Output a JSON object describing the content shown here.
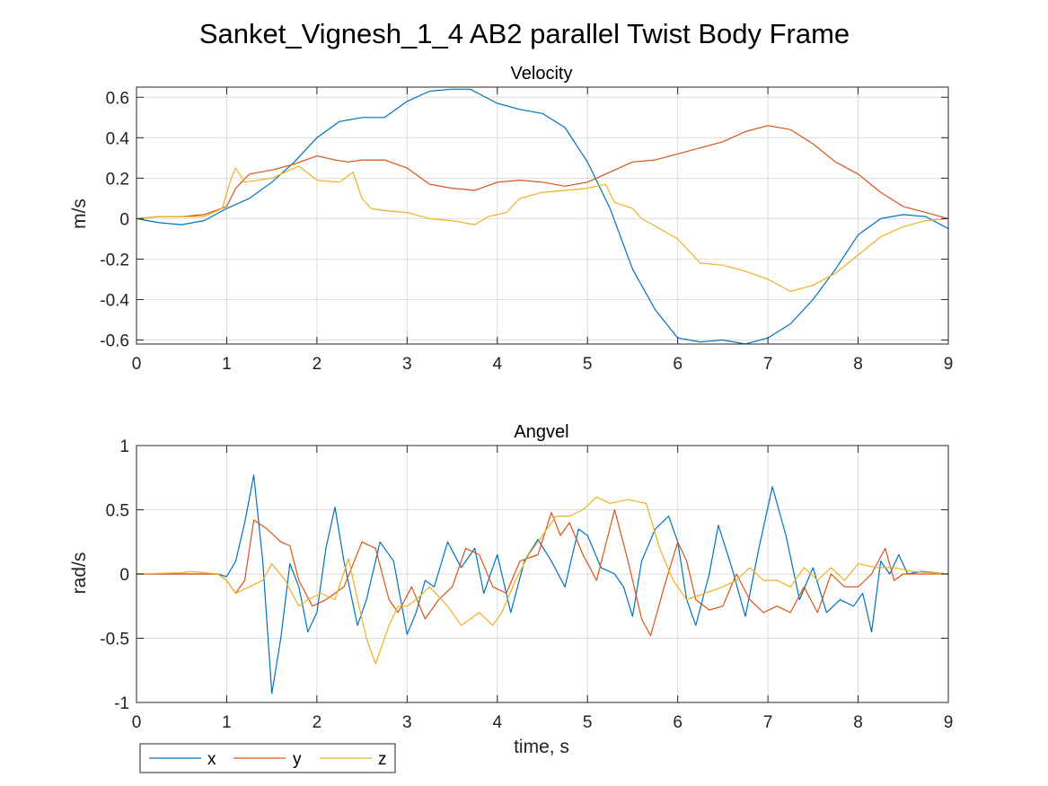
{
  "title": "Sanket_Vignesh_1_4 AB2 parallel Twist Body Frame",
  "colors": {
    "x": "#0072BD",
    "y": "#D95319",
    "z": "#EDB120"
  },
  "legend": {
    "placement": "bottom-left",
    "entries": [
      "x",
      "y",
      "z"
    ]
  },
  "chart_data": [
    {
      "type": "line",
      "title": "Velocity",
      "xlabel": "",
      "ylabel": "m/s",
      "xlim": [
        0,
        9
      ],
      "ylim": [
        -0.62,
        0.65
      ],
      "xticks": [
        0,
        1,
        2,
        3,
        4,
        5,
        6,
        7,
        8,
        9
      ],
      "yticks": [
        -0.6,
        -0.4,
        -0.2,
        0,
        0.2,
        0.4,
        0.6
      ],
      "ytick_labels": [
        "-0.6",
        "-0.4",
        "-0.2",
        "0",
        "0.2",
        "0.4",
        "0.6"
      ],
      "grid": true,
      "series": [
        {
          "name": "x",
          "x": [
            0,
            0.25,
            0.5,
            0.75,
            1.0,
            1.25,
            1.5,
            1.75,
            2.0,
            2.25,
            2.5,
            2.75,
            3.0,
            3.25,
            3.5,
            3.7,
            4.0,
            4.25,
            4.5,
            4.75,
            5.0,
            5.25,
            5.5,
            5.75,
            6.0,
            6.25,
            6.5,
            6.75,
            7.0,
            7.25,
            7.5,
            7.75,
            8.0,
            8.25,
            8.5,
            8.75,
            9.0
          ],
          "y": [
            0,
            -0.02,
            -0.03,
            -0.01,
            0.05,
            0.1,
            0.18,
            0.28,
            0.4,
            0.48,
            0.5,
            0.5,
            0.58,
            0.63,
            0.64,
            0.64,
            0.57,
            0.54,
            0.52,
            0.45,
            0.28,
            0.05,
            -0.25,
            -0.45,
            -0.59,
            -0.61,
            -0.6,
            -0.62,
            -0.59,
            -0.52,
            -0.4,
            -0.25,
            -0.08,
            0.0,
            0.02,
            0.01,
            -0.05
          ]
        },
        {
          "name": "y",
          "x": [
            0,
            0.25,
            0.5,
            0.75,
            1.0,
            1.1,
            1.25,
            1.5,
            1.75,
            2.0,
            2.2,
            2.35,
            2.5,
            2.75,
            3.0,
            3.25,
            3.5,
            3.75,
            4.0,
            4.25,
            4.5,
            4.75,
            5.0,
            5.25,
            5.5,
            5.75,
            6.0,
            6.25,
            6.5,
            6.75,
            7.0,
            7.25,
            7.5,
            7.75,
            8.0,
            8.25,
            8.5,
            8.75,
            9.0
          ],
          "y": [
            0,
            0.01,
            0.01,
            0.02,
            0.06,
            0.15,
            0.22,
            0.24,
            0.27,
            0.31,
            0.29,
            0.28,
            0.29,
            0.29,
            0.25,
            0.17,
            0.15,
            0.14,
            0.18,
            0.19,
            0.18,
            0.16,
            0.18,
            0.23,
            0.28,
            0.29,
            0.32,
            0.35,
            0.38,
            0.43,
            0.46,
            0.44,
            0.37,
            0.28,
            0.22,
            0.13,
            0.06,
            0.03,
            0.0
          ]
        },
        {
          "name": "z",
          "x": [
            0,
            0.25,
            0.5,
            0.75,
            0.95,
            1.05,
            1.1,
            1.2,
            1.5,
            1.8,
            2.0,
            2.25,
            2.4,
            2.5,
            2.6,
            2.75,
            3.0,
            3.25,
            3.5,
            3.75,
            3.9,
            4.1,
            4.25,
            4.5,
            4.75,
            5.0,
            5.2,
            5.3,
            5.5,
            5.6,
            5.8,
            6.0,
            6.25,
            6.5,
            6.75,
            7.0,
            7.25,
            7.5,
            7.75,
            8.0,
            8.25,
            8.5,
            8.75,
            9.0
          ],
          "y": [
            0,
            0.01,
            0.01,
            0.01,
            0.05,
            0.2,
            0.25,
            0.18,
            0.2,
            0.26,
            0.19,
            0.18,
            0.23,
            0.1,
            0.05,
            0.04,
            0.03,
            0.0,
            -0.01,
            -0.03,
            0.01,
            0.03,
            0.1,
            0.13,
            0.14,
            0.15,
            0.17,
            0.08,
            0.05,
            0.0,
            -0.05,
            -0.1,
            -0.22,
            -0.23,
            -0.26,
            -0.3,
            -0.36,
            -0.33,
            -0.27,
            -0.18,
            -0.09,
            -0.04,
            -0.01,
            0.0
          ]
        }
      ]
    },
    {
      "type": "line",
      "title": "Angvel",
      "xlabel": "time, s",
      "ylabel": "rad/s",
      "xlim": [
        0,
        9
      ],
      "ylim": [
        -1,
        1
      ],
      "xticks": [
        0,
        1,
        2,
        3,
        4,
        5,
        6,
        7,
        8,
        9
      ],
      "yticks": [
        -1,
        -0.5,
        0,
        0.5,
        1
      ],
      "ytick_labels": [
        "-1",
        "-0.5",
        "0",
        "0.5",
        "1"
      ],
      "grid": true,
      "series": [
        {
          "name": "x",
          "x": [
            0,
            0.9,
            1.0,
            1.1,
            1.2,
            1.3,
            1.4,
            1.5,
            1.6,
            1.7,
            1.8,
            1.9,
            2.0,
            2.1,
            2.2,
            2.3,
            2.45,
            2.55,
            2.7,
            2.85,
            3.0,
            3.1,
            3.2,
            3.3,
            3.45,
            3.6,
            3.75,
            3.85,
            4.0,
            4.15,
            4.3,
            4.45,
            4.6,
            4.75,
            4.9,
            5.0,
            5.15,
            5.3,
            5.4,
            5.5,
            5.6,
            5.75,
            5.9,
            6.0,
            6.1,
            6.2,
            6.35,
            6.45,
            6.6,
            6.75,
            6.9,
            7.05,
            7.2,
            7.35,
            7.5,
            7.65,
            7.8,
            7.95,
            8.05,
            8.15,
            8.25,
            8.35,
            8.45,
            8.55,
            8.7,
            9.0
          ],
          "y": [
            0,
            0,
            -0.02,
            0.1,
            0.4,
            0.77,
            0.1,
            -0.93,
            -0.5,
            0.08,
            -0.1,
            -0.45,
            -0.3,
            0.2,
            0.52,
            0.1,
            -0.4,
            -0.2,
            0.25,
            0.1,
            -0.47,
            -0.3,
            -0.05,
            -0.1,
            0.25,
            0.05,
            0.2,
            -0.15,
            0.15,
            -0.3,
            0.1,
            0.27,
            0.1,
            -0.1,
            0.35,
            0.3,
            0.05,
            0.0,
            -0.1,
            -0.33,
            0.1,
            0.35,
            0.45,
            0.25,
            -0.2,
            -0.4,
            0.0,
            0.38,
            0.05,
            -0.33,
            0.2,
            0.68,
            0.3,
            -0.2,
            0.05,
            -0.3,
            -0.2,
            -0.25,
            -0.15,
            -0.45,
            0.1,
            0.0,
            0.15,
            0.0,
            0.02,
            0.0
          ]
        },
        {
          "name": "y",
          "x": [
            0,
            0.9,
            1.0,
            1.1,
            1.2,
            1.3,
            1.45,
            1.6,
            1.7,
            1.8,
            1.95,
            2.1,
            2.3,
            2.5,
            2.65,
            2.8,
            2.9,
            3.05,
            3.2,
            3.35,
            3.5,
            3.65,
            3.8,
            3.95,
            4.1,
            4.25,
            4.45,
            4.6,
            4.7,
            4.8,
            4.95,
            5.1,
            5.3,
            5.45,
            5.6,
            5.7,
            5.85,
            6.0,
            6.1,
            6.2,
            6.35,
            6.5,
            6.65,
            6.8,
            6.95,
            7.1,
            7.25,
            7.4,
            7.55,
            7.7,
            7.85,
            8.0,
            8.15,
            8.3,
            8.4,
            8.5,
            8.7,
            9.0
          ],
          "y": [
            0,
            0,
            -0.05,
            -0.15,
            -0.05,
            0.42,
            0.35,
            0.25,
            0.22,
            -0.05,
            -0.25,
            -0.2,
            -0.1,
            0.25,
            0.2,
            -0.2,
            -0.3,
            -0.1,
            -0.35,
            -0.2,
            -0.1,
            0.2,
            0.15,
            -0.1,
            -0.15,
            0.1,
            0.15,
            0.48,
            0.3,
            0.4,
            0.15,
            -0.05,
            0.5,
            0.1,
            -0.35,
            -0.48,
            -0.1,
            0.25,
            0.1,
            -0.2,
            -0.28,
            -0.25,
            0.0,
            -0.2,
            -0.3,
            -0.25,
            -0.3,
            -0.1,
            -0.3,
            0.0,
            -0.1,
            -0.1,
            0.0,
            0.2,
            -0.05,
            0.0,
            0.0,
            0.0
          ]
        },
        {
          "name": "z",
          "x": [
            0,
            0.5,
            0.6,
            0.9,
            1.0,
            1.1,
            1.25,
            1.4,
            1.5,
            1.65,
            1.8,
            1.9,
            2.05,
            2.2,
            2.35,
            2.45,
            2.55,
            2.65,
            2.7,
            2.8,
            2.9,
            3.0,
            3.1,
            3.25,
            3.45,
            3.6,
            3.8,
            3.95,
            4.05,
            4.2,
            4.35,
            4.5,
            4.65,
            4.8,
            4.95,
            5.1,
            5.25,
            5.45,
            5.65,
            5.8,
            5.95,
            6.1,
            6.3,
            6.5,
            6.65,
            6.8,
            6.95,
            7.1,
            7.25,
            7.4,
            7.55,
            7.7,
            7.85,
            8.0,
            8.2,
            8.4,
            8.6,
            9.0
          ],
          "y": [
            0,
            0.01,
            0.02,
            0.0,
            -0.05,
            -0.15,
            -0.1,
            -0.05,
            0.08,
            -0.05,
            -0.25,
            -0.2,
            -0.15,
            -0.2,
            0.12,
            -0.2,
            -0.5,
            -0.7,
            -0.6,
            -0.4,
            -0.25,
            -0.25,
            -0.2,
            -0.1,
            -0.25,
            -0.4,
            -0.3,
            -0.4,
            -0.3,
            -0.05,
            0.15,
            0.3,
            0.45,
            0.45,
            0.5,
            0.6,
            0.55,
            0.58,
            0.55,
            0.2,
            -0.05,
            -0.2,
            -0.15,
            -0.1,
            -0.05,
            0.05,
            -0.05,
            -0.05,
            -0.1,
            0.05,
            -0.05,
            0.05,
            -0.05,
            0.08,
            0.05,
            0.05,
            0.02,
            0.0
          ]
        }
      ]
    }
  ]
}
